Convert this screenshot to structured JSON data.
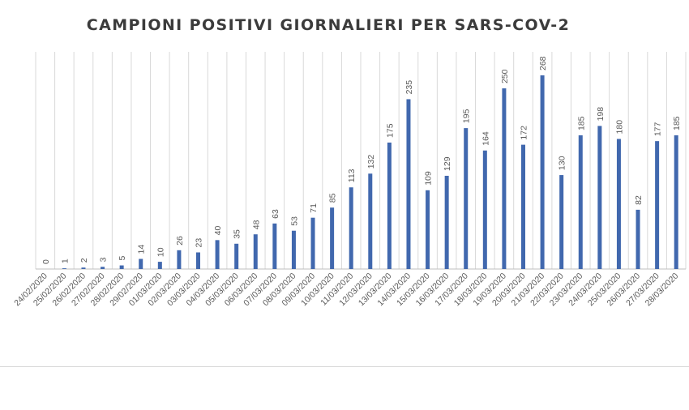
{
  "chart_data": {
    "type": "bar",
    "title": "CAMPIONI POSITIVI GIORNALIERI PER SARS-COV-2",
    "xlabel": "",
    "ylabel": "",
    "ylim": [
      0,
      290
    ],
    "grid": "vertical",
    "legend": "none",
    "bar_color": "#4168AE",
    "categories": [
      "24/02/2020",
      "25/02/2020",
      "26/02/2020",
      "27/02/2020",
      "28/02/2020",
      "29/02/2020",
      "01/03/2020",
      "02/03/2020",
      "03/03/2020",
      "04/03/2020",
      "05/03/2020",
      "06/03/2020",
      "07/03/2020",
      "08/03/2020",
      "09/03/2020",
      "10/03/2020",
      "11/03/2020",
      "12/03/2020",
      "13/03/2020",
      "14/03/2020",
      "15/03/2020",
      "16/03/2020",
      "17/03/2020",
      "18/03/2020",
      "19/03/2020",
      "20/03/2020",
      "21/03/2020",
      "22/03/2020",
      "23/03/2020",
      "24/03/2020",
      "25/03/2020",
      "26/03/2020",
      "27/03/2020",
      "28/03/2020"
    ],
    "values": [
      0,
      1,
      2,
      3,
      5,
      14,
      10,
      26,
      23,
      40,
      35,
      48,
      63,
      53,
      71,
      85,
      113,
      132,
      175,
      235,
      109,
      129,
      195,
      164,
      250,
      172,
      268,
      130,
      185,
      198,
      180,
      82,
      177,
      185
    ]
  }
}
